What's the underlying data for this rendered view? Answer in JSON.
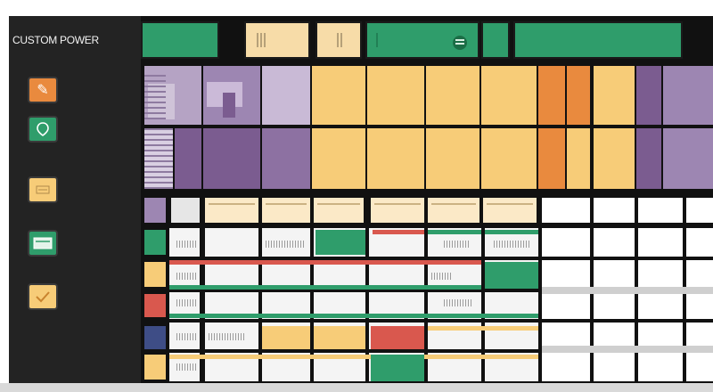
{
  "app": {
    "title": "CUSTOM POWER"
  },
  "colors": {
    "sidebar_bg": "#232323",
    "grid_line": "#111111",
    "green": "#2f9d6b",
    "yellow": "#f7cc78",
    "orange": "#e98a3e",
    "purple": "#7b5c90",
    "lavender": "#b5a3c4",
    "red": "#d9584e",
    "navy": "#3e4d86",
    "gray": "#cfcfcf"
  },
  "sidebar": {
    "items": [
      {
        "name": "sidebar-item-edit",
        "icon": "pencil-icon",
        "color": "#e98a3e"
      },
      {
        "name": "sidebar-item-location",
        "icon": "location-pin-icon",
        "color": "#2f9d6b"
      },
      {
        "name": "sidebar-item-document",
        "icon": "document-icon",
        "color": "#f7cc78"
      },
      {
        "name": "sidebar-item-card",
        "icon": "card-icon",
        "color": "#2f9d6b"
      },
      {
        "name": "sidebar-item-check",
        "icon": "check-icon",
        "color": "#f7cc78"
      }
    ]
  },
  "toolbar": {
    "buttons": [
      {
        "name": "toolbar-green-button",
        "color": "#2f9d6b"
      },
      {
        "name": "toolbar-yellow-button-1",
        "color": "#f7dca8"
      },
      {
        "name": "toolbar-yellow-button-2",
        "color": "#f7dca8"
      },
      {
        "name": "toolbar-menu-button",
        "color": "#2f9d6b",
        "icon": "menu-icon"
      },
      {
        "name": "toolbar-green-button-2",
        "color": "#2f9d6b"
      },
      {
        "name": "toolbar-wide-green-button",
        "color": "#2f9d6b"
      }
    ]
  }
}
